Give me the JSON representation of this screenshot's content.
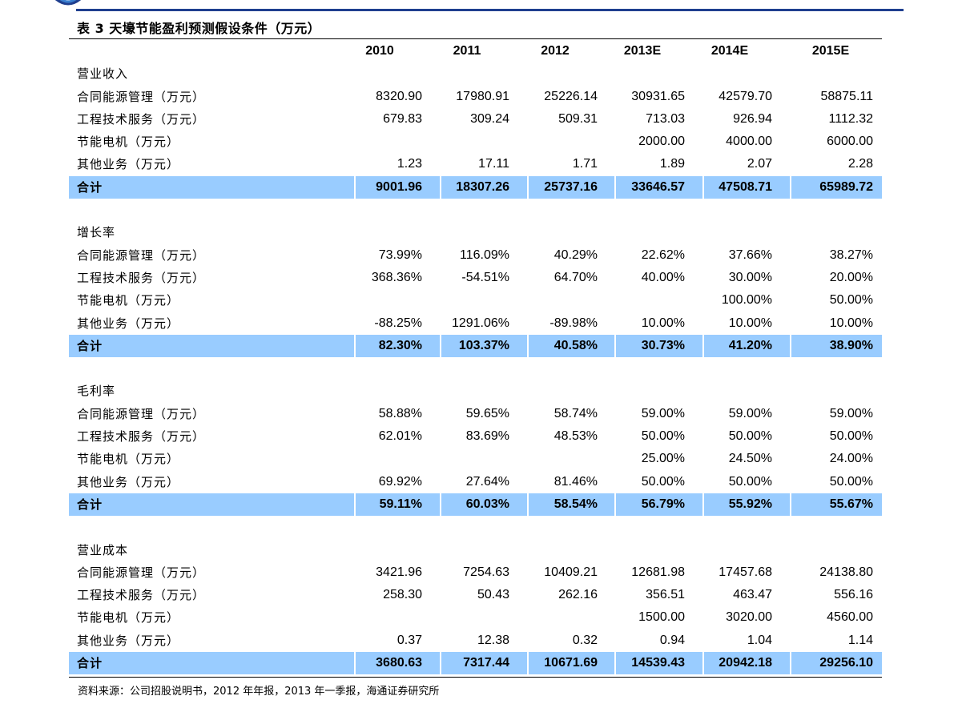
{
  "title": "表 3 天壕节能盈利预测假设条件（万元）",
  "columns": [
    "2010",
    "2011",
    "2012",
    "2013E",
    "2014E",
    "2015E"
  ],
  "sections": [
    {
      "name": "营业收入",
      "rows": [
        {
          "label": "合同能源管理（万元）",
          "values": [
            "8320.90",
            "17980.91",
            "25226.14",
            "30931.65",
            "42579.70",
            "58875.11"
          ]
        },
        {
          "label": "工程技术服务（万元）",
          "values": [
            "679.83",
            "309.24",
            "509.31",
            "713.03",
            "926.94",
            "1112.32"
          ]
        },
        {
          "label": "节能电机（万元）",
          "values": [
            "",
            "",
            "",
            "2000.00",
            "4000.00",
            "6000.00"
          ]
        },
        {
          "label": "其他业务（万元）",
          "values": [
            "1.23",
            "17.11",
            "1.71",
            "1.89",
            "2.07",
            "2.28"
          ]
        }
      ],
      "total": {
        "label": "合计",
        "values": [
          "9001.96",
          "18307.26",
          "25737.16",
          "33646.57",
          "47508.71",
          "65989.72"
        ]
      }
    },
    {
      "name": "增长率",
      "rows": [
        {
          "label": "合同能源管理（万元）",
          "values": [
            "73.99%",
            "116.09%",
            "40.29%",
            "22.62%",
            "37.66%",
            "38.27%"
          ]
        },
        {
          "label": "工程技术服务（万元）",
          "values": [
            "368.36%",
            "-54.51%",
            "64.70%",
            "40.00%",
            "30.00%",
            "20.00%"
          ]
        },
        {
          "label": "节能电机（万元）",
          "values": [
            "",
            "",
            "",
            "",
            "100.00%",
            "50.00%"
          ]
        },
        {
          "label": "其他业务（万元）",
          "values": [
            "-88.25%",
            "1291.06%",
            "-89.98%",
            "10.00%",
            "10.00%",
            "10.00%"
          ]
        }
      ],
      "total": {
        "label": "合计",
        "values": [
          "82.30%",
          "103.37%",
          "40.58%",
          "30.73%",
          "41.20%",
          "38.90%"
        ]
      }
    },
    {
      "name": "毛利率",
      "rows": [
        {
          "label": "合同能源管理（万元）",
          "values": [
            "58.88%",
            "59.65%",
            "58.74%",
            "59.00%",
            "59.00%",
            "59.00%"
          ]
        },
        {
          "label": "工程技术服务（万元）",
          "values": [
            "62.01%",
            "83.69%",
            "48.53%",
            "50.00%",
            "50.00%",
            "50.00%"
          ]
        },
        {
          "label": "节能电机（万元）",
          "values": [
            "",
            "",
            "",
            "25.00%",
            "24.50%",
            "24.00%"
          ]
        },
        {
          "label": "其他业务（万元）",
          "values": [
            "69.92%",
            "27.64%",
            "81.46%",
            "50.00%",
            "50.00%",
            "50.00%"
          ]
        }
      ],
      "total": {
        "label": "合计",
        "values": [
          "59.11%",
          "60.03%",
          "58.54%",
          "56.79%",
          "55.92%",
          "55.67%"
        ]
      }
    },
    {
      "name": "营业成本",
      "rows": [
        {
          "label": "合同能源管理（万元）",
          "values": [
            "3421.96",
            "7254.63",
            "10409.21",
            "12681.98",
            "17457.68",
            "24138.80"
          ]
        },
        {
          "label": "工程技术服务（万元）",
          "values": [
            "258.30",
            "50.43",
            "262.16",
            "356.51",
            "463.47",
            "556.16"
          ]
        },
        {
          "label": "节能电机（万元）",
          "values": [
            "",
            "",
            "",
            "1500.00",
            "3020.00",
            "4560.00"
          ]
        },
        {
          "label": "其他业务（万元）",
          "values": [
            "0.37",
            "12.38",
            "0.32",
            "0.94",
            "1.04",
            "1.14"
          ]
        }
      ],
      "total": {
        "label": "合计",
        "values": [
          "3680.63",
          "7317.44",
          "10671.69",
          "14539.43",
          "20942.18",
          "29256.10"
        ]
      }
    }
  ],
  "source": "资料来源：公司招股说明书，2012 年年报，2013 年一季报，海通证券研究所",
  "colors": {
    "accent": "#1f3f8f",
    "total_row": "#99ccff"
  }
}
